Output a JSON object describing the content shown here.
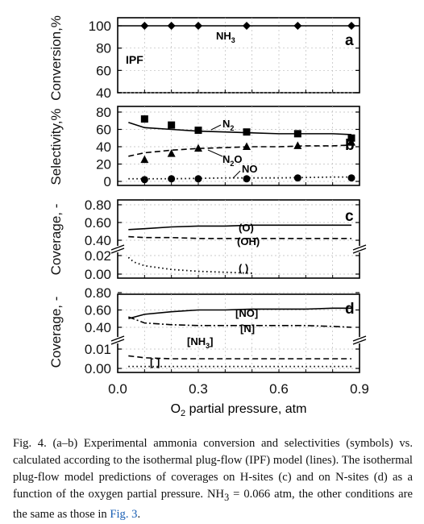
{
  "axes": {
    "xlabel": "O2 partial pressure, atm",
    "xlabel_parts": {
      "main1": "O",
      "sub": "2",
      "main2": " partial pressure, atm"
    },
    "x_ticks": [
      "0.0",
      "0.3",
      "0.6",
      "0.9"
    ]
  },
  "panel_a": {
    "letter": "a",
    "ylabel": "Conversion,%",
    "yticks": [
      "100",
      "80",
      "60",
      "40"
    ],
    "note": "IPF",
    "label_main": "NH",
    "label_sub": "3"
  },
  "panel_b": {
    "letter": "b",
    "ylabel": "Selectivity,%",
    "yticks": [
      "80",
      "60",
      "40",
      "20",
      "0"
    ],
    "n2_main": "N",
    "n2_sub": "2",
    "n2o_main": "N",
    "n2o_sub": "2",
    "n2o_tail": "O",
    "no_label": "NO"
  },
  "panel_c": {
    "letter": "c",
    "ylabel": "Coverage, -",
    "yticks_upper": [
      "0.80",
      "0.60",
      "0.40"
    ],
    "yticks_lower": [
      "0.02",
      "0.00"
    ],
    "o_label": "(O)",
    "oh_label": "(OH)",
    "empty_label": "(  )"
  },
  "panel_d": {
    "letter": "d",
    "ylabel": "Coverage, -",
    "yticks_upper": [
      "0.80",
      "0.60",
      "0.40"
    ],
    "yticks_lower": [
      "0.01",
      "0.00"
    ],
    "no_label": "[NO]",
    "n_label": "[N]",
    "nh3_main": "[NH",
    "nh3_sub": "3",
    "nh3_tail": "]",
    "empty_label": "[  ]"
  },
  "chart_data": [
    {
      "panel": "a",
      "type": "line",
      "xlim": [
        0.0,
        0.9
      ],
      "ylim": [
        40,
        100
      ],
      "ylabel": "Conversion,%",
      "series": [
        {
          "name": "NH3",
          "style": "solid-with-diamonds",
          "x": [
            0.1,
            0.2,
            0.3,
            0.48,
            0.67,
            0.87
          ],
          "values": [
            100,
            100,
            100,
            100,
            100,
            100
          ]
        }
      ]
    },
    {
      "panel": "b",
      "type": "scatter",
      "xlim": [
        0.0,
        0.9
      ],
      "ylim": [
        0,
        80
      ],
      "ylabel": "Selectivity,%",
      "series": [
        {
          "name": "N2",
          "marker": "square",
          "x": [
            0.1,
            0.2,
            0.3,
            0.48,
            0.67,
            0.87
          ],
          "values": [
            72,
            65,
            59,
            57,
            55,
            50
          ]
        },
        {
          "name": "N2O",
          "marker": "triangle",
          "x": [
            0.1,
            0.2,
            0.3,
            0.48,
            0.67,
            0.87
          ],
          "values": [
            25,
            32,
            38,
            40,
            41,
            45
          ]
        },
        {
          "name": "NO",
          "marker": "circle",
          "x": [
            0.1,
            0.2,
            0.3,
            0.48,
            0.67,
            0.87
          ],
          "values": [
            2,
            3,
            3,
            3,
            4,
            4
          ]
        },
        {
          "name": "N2",
          "line": "solid",
          "x": [
            0.04,
            0.1,
            0.2,
            0.3,
            0.4,
            0.5,
            0.6,
            0.7,
            0.8,
            0.87
          ],
          "values": [
            68,
            62,
            60,
            58,
            57,
            56,
            55,
            55,
            55,
            54
          ]
        },
        {
          "name": "N2O",
          "line": "dashed",
          "x": [
            0.04,
            0.1,
            0.2,
            0.3,
            0.4,
            0.5,
            0.6,
            0.7,
            0.8,
            0.87
          ],
          "values": [
            29,
            33,
            36,
            38,
            39,
            40,
            40,
            41,
            41,
            42
          ]
        },
        {
          "name": "NO",
          "line": "dotted",
          "x": [
            0.04,
            0.2,
            0.4,
            0.6,
            0.8,
            0.87
          ],
          "values": [
            3,
            3,
            4,
            4,
            5,
            5
          ]
        }
      ]
    },
    {
      "panel": "c",
      "type": "line",
      "xlim": [
        0.0,
        0.9
      ],
      "ylim_upper": [
        0.4,
        0.8
      ],
      "ylim_lower": [
        0.0,
        0.02
      ],
      "ylabel": "Coverage, -",
      "series": [
        {
          "name": "(O)",
          "line": "solid",
          "x": [
            0.04,
            0.1,
            0.2,
            0.3,
            0.4,
            0.5,
            0.6,
            0.7,
            0.8,
            0.87
          ],
          "values": [
            0.52,
            0.53,
            0.55,
            0.56,
            0.56,
            0.57,
            0.57,
            0.57,
            0.57,
            0.57
          ]
        },
        {
          "name": "(OH)",
          "line": "dashed",
          "x": [
            0.04,
            0.1,
            0.2,
            0.3,
            0.4,
            0.5,
            0.6,
            0.7,
            0.8,
            0.87
          ],
          "values": [
            0.44,
            0.43,
            0.43,
            0.42,
            0.42,
            0.42,
            0.42,
            0.42,
            0.42,
            0.42
          ]
        },
        {
          "name": "(  )",
          "line": "dotted",
          "x": [
            0.04,
            0.06,
            0.08,
            0.1,
            0.15,
            0.2,
            0.3,
            0.4,
            0.5
          ],
          "values": [
            0.018,
            0.013,
            0.011,
            0.009,
            0.007,
            0.005,
            0.003,
            0.002,
            0.001
          ]
        }
      ]
    },
    {
      "panel": "d",
      "type": "line",
      "xlim": [
        0.0,
        0.9
      ],
      "ylim_upper": [
        0.4,
        0.8
      ],
      "ylim_lower": [
        0.0,
        0.01
      ],
      "ylabel": "Coverage, -",
      "series": [
        {
          "name": "[NO]",
          "line": "solid",
          "x": [
            0.04,
            0.1,
            0.2,
            0.3,
            0.4,
            0.5,
            0.6,
            0.7,
            0.8,
            0.87
          ],
          "values": [
            0.5,
            0.55,
            0.58,
            0.6,
            0.6,
            0.61,
            0.61,
            0.61,
            0.62,
            0.62
          ]
        },
        {
          "name": "[N]",
          "line": "dash-dot",
          "x": [
            0.04,
            0.1,
            0.2,
            0.3,
            0.4,
            0.5,
            0.6,
            0.7,
            0.8,
            0.87
          ],
          "values": [
            0.52,
            0.45,
            0.43,
            0.42,
            0.42,
            0.42,
            0.42,
            0.42,
            0.41,
            0.4
          ]
        },
        {
          "name": "[NH3]",
          "line": "dashed",
          "x": [
            0.04,
            0.1,
            0.2,
            0.3,
            0.4,
            0.5,
            0.6,
            0.7,
            0.8,
            0.87
          ],
          "values": [
            0.0065,
            0.0055,
            0.005,
            0.005,
            0.005,
            0.005,
            0.005,
            0.005,
            0.005,
            0.005
          ]
        },
        {
          "name": "[  ]",
          "line": "dotted",
          "x": [
            0.04,
            0.2,
            0.4,
            0.6,
            0.8,
            0.87
          ],
          "values": [
            0.001,
            0.001,
            0.001,
            0.001,
            0.001,
            0.001
          ]
        }
      ]
    }
  ],
  "caption": {
    "part1": "Fig. 4. (a–b) Experimental ammonia conversion and selectivities (symbols) vs. calculated according to the isothermal plug-flow (IPF) model (lines). The isothermal plug-flow model predictions of coverages on H-sites (c) and on N-sites (d) as a function of the oxygen partial pressure. NH",
    "sub": "3",
    "part2": " = 0.066 atm, the other conditions are the same as those in ",
    "ref": "Fig. 3",
    "part3": "."
  }
}
